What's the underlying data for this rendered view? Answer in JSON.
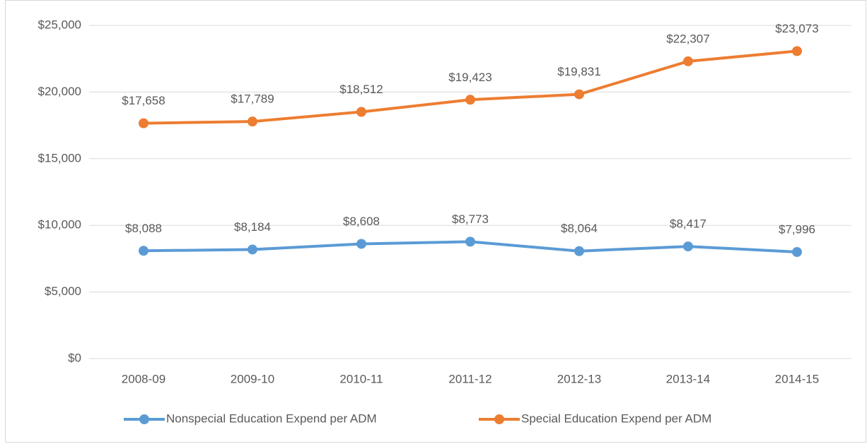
{
  "chart_data": {
    "type": "line",
    "categories": [
      "2008-09",
      "2009-10",
      "2010-11",
      "2011-12",
      "2012-13",
      "2013-14",
      "2014-15"
    ],
    "series": [
      {
        "name": "Nonspecial Education Expend per ADM",
        "color": "#5b9bd5",
        "values": [
          8088,
          8184,
          8608,
          8773,
          8064,
          8417,
          7996
        ],
        "value_labels": [
          "$8,088",
          "$8,184",
          "$8,608",
          "$8,773",
          "$8,064",
          "$8,417",
          "$7,996"
        ]
      },
      {
        "name": "Special Education Expend per ADM",
        "color": "#ed7d31",
        "values": [
          17658,
          17789,
          18512,
          19423,
          19831,
          22307,
          23073
        ],
        "value_labels": [
          "$17,658",
          "$17,789",
          "$18,512",
          "$19,423",
          "$19,831",
          "$22,307",
          "$23,073"
        ]
      }
    ],
    "ylim": [
      0,
      25000
    ],
    "yticks": [
      {
        "value": 0,
        "label": "$0"
      },
      {
        "value": 5000,
        "label": "$5,000"
      },
      {
        "value": 10000,
        "label": "$10,000"
      },
      {
        "value": 15000,
        "label": "$15,000"
      },
      {
        "value": 20000,
        "label": "$20,000"
      },
      {
        "value": 25000,
        "label": "$25,000"
      }
    ],
    "grid": true,
    "legend": "bottom"
  }
}
